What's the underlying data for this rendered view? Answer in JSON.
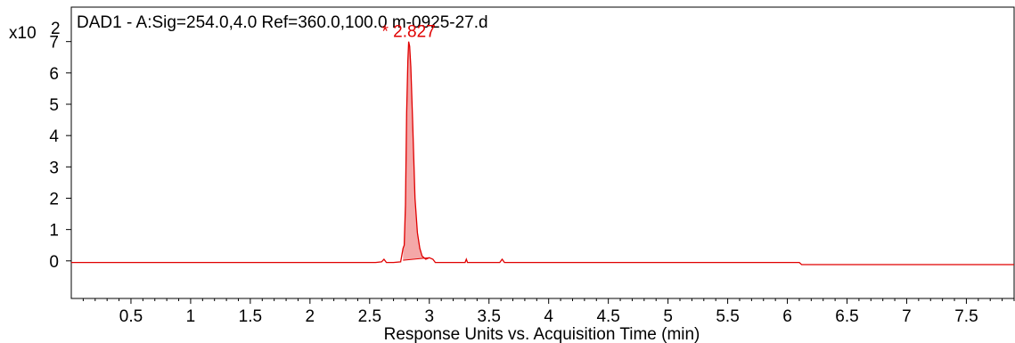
{
  "chart_data": {
    "type": "line",
    "title": "DAD1 - A:Sig=254.0,4.0  Ref=360.0,100.0 m-0925-27.d",
    "xlabel": "Response Units vs. Acquisition Time (min)",
    "ylabel": "",
    "y_multiplier_label": "x10",
    "y_multiplier_exponent": "2",
    "xlim": [
      0.0,
      7.9
    ],
    "ylim": [
      -1.2,
      8.1
    ],
    "x_ticks": [
      0.5,
      1,
      1.5,
      2,
      2.5,
      3,
      3.5,
      4,
      4.5,
      5,
      5.5,
      6,
      6.5,
      7,
      7.5
    ],
    "x_tick_labels": [
      "0.5",
      "1",
      "1.5",
      "2",
      "2.5",
      "3",
      "3.5",
      "4",
      "4.5",
      "5",
      "5.5",
      "6",
      "6.5",
      "7",
      "7.5"
    ],
    "y_ticks": [
      0,
      1,
      2,
      3,
      4,
      5,
      6,
      7
    ],
    "y_tick_labels": [
      "0",
      "1",
      "2",
      "3",
      "4",
      "5",
      "6",
      "7"
    ],
    "grid": false,
    "line_color": "#e00000",
    "fill_color": "#f4a8a8",
    "peak_label_color": "#e00000",
    "series": [
      {
        "x": [
          0.0,
          2.55,
          2.6,
          2.62,
          2.64,
          2.7,
          2.76,
          2.78,
          2.79,
          2.8,
          2.81,
          2.82,
          2.827,
          2.835,
          2.845,
          2.86,
          2.87,
          2.88,
          2.9,
          2.92,
          2.94,
          2.97,
          3.0,
          3.03,
          3.05,
          3.1,
          3.3,
          3.31,
          3.32,
          3.59,
          3.61,
          3.63,
          4.0,
          5.0,
          6.1,
          6.12,
          7.9
        ],
        "y": [
          -0.05,
          -0.05,
          -0.03,
          0.05,
          -0.05,
          -0.05,
          -0.03,
          0.4,
          0.5,
          1.8,
          4.7,
          6.4,
          7.0,
          6.85,
          6.2,
          4.5,
          3.2,
          2.0,
          0.9,
          0.4,
          0.15,
          0.05,
          0.1,
          0.05,
          -0.05,
          -0.05,
          -0.05,
          0.05,
          -0.05,
          -0.05,
          0.05,
          -0.05,
          -0.05,
          -0.05,
          -0.05,
          -0.12,
          -0.12
        ]
      }
    ],
    "peak": {
      "area_x": [
        2.78,
        2.79,
        2.8,
        2.81,
        2.82,
        2.827,
        2.835,
        2.845,
        2.86,
        2.87,
        2.88,
        2.9,
        2.92,
        2.94,
        2.97,
        3.0
      ],
      "area_y": [
        0.4,
        0.5,
        1.8,
        4.7,
        6.4,
        7.0,
        6.85,
        6.2,
        4.5,
        3.2,
        2.0,
        0.9,
        0.4,
        0.15,
        0.05,
        0.1
      ],
      "baseline_start": [
        2.78,
        0.02
      ],
      "baseline_end": [
        3.0,
        0.1
      ],
      "label": "* 2.827",
      "x": 2.827,
      "y": 7.0
    }
  }
}
